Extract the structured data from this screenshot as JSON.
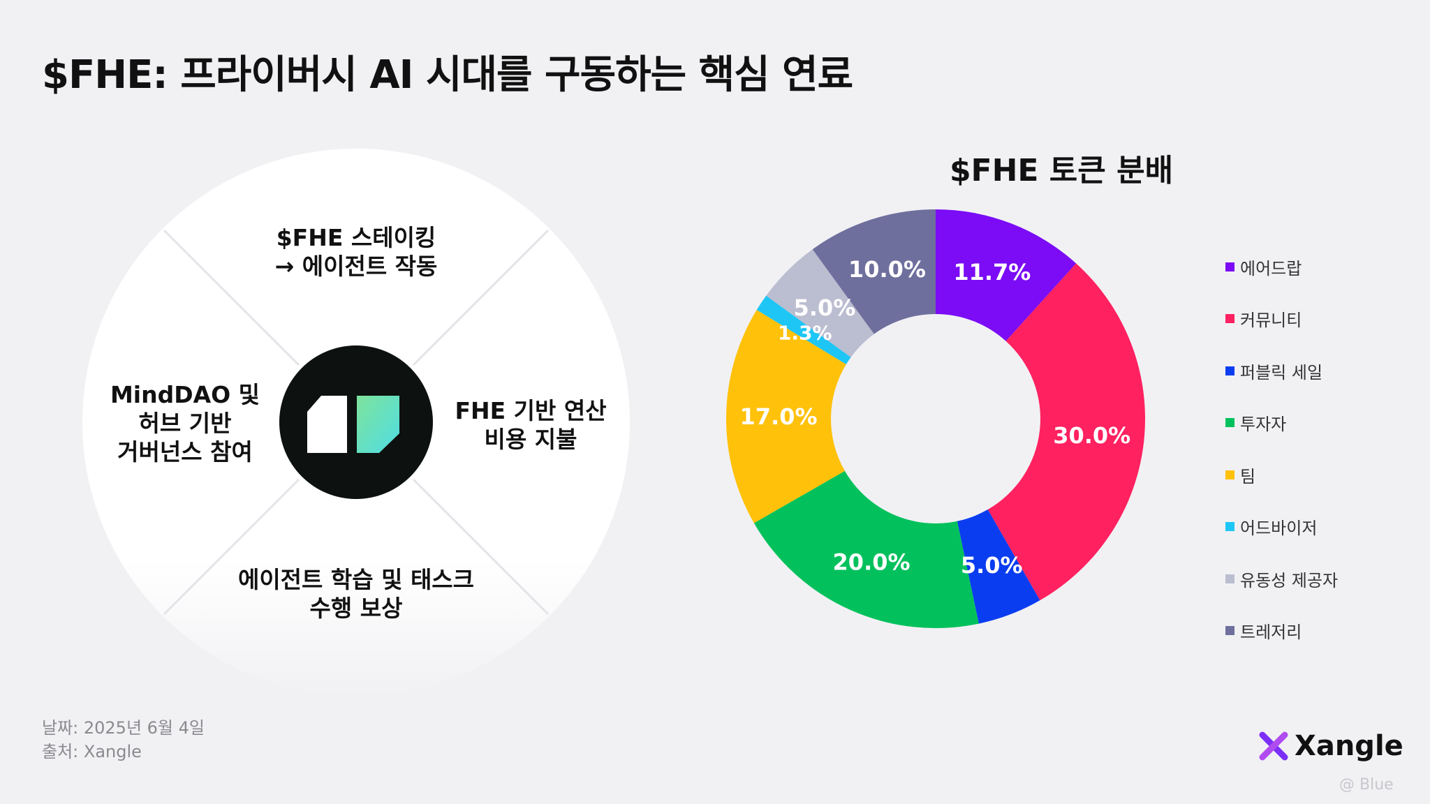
{
  "title": "$FHE: 프라이버시 AI 시대를 구동하는 핵심 연료",
  "diagram": {
    "top": [
      "$FHE 스테이킹",
      "→ 에이전트 작동"
    ],
    "left": [
      "MindDAO 및",
      "허브 기반",
      "거버넌스 참여"
    ],
    "right": [
      "FHE 기반 연산",
      "비용 지불"
    ],
    "bottom": [
      "에이전트 학습 및 태스크",
      "수행 보상"
    ]
  },
  "chart_data": {
    "type": "donut",
    "title": "$FHE 토큰 분배",
    "categories": [
      "에어드랍",
      "커뮤니티",
      "퍼블릭 세일",
      "투자자",
      "팀",
      "어드바이저",
      "유동성 제공자",
      "트레저리"
    ],
    "values": [
      11.7,
      30.0,
      5.0,
      20.0,
      17.0,
      1.3,
      5.0,
      10.0
    ],
    "labels": [
      "11.7%",
      "30.0%",
      "5.0%",
      "20.0%",
      "17.0%",
      "1.3%",
      "5.0%",
      "10.0%"
    ],
    "colors": [
      "#7b0cf5",
      "#ff2160",
      "#0b3df0",
      "#02c15c",
      "#ffc10a",
      "#1ec6f5",
      "#bbbdd0",
      "#6f6f9e"
    ],
    "legend_position": "right"
  },
  "footer": {
    "date": "날짜: 2025년 6월 4일",
    "source": "출처: Xangle"
  },
  "brand": {
    "name": "Xangle",
    "icon": "xangle-x-icon"
  },
  "watermark": "@ Blue"
}
